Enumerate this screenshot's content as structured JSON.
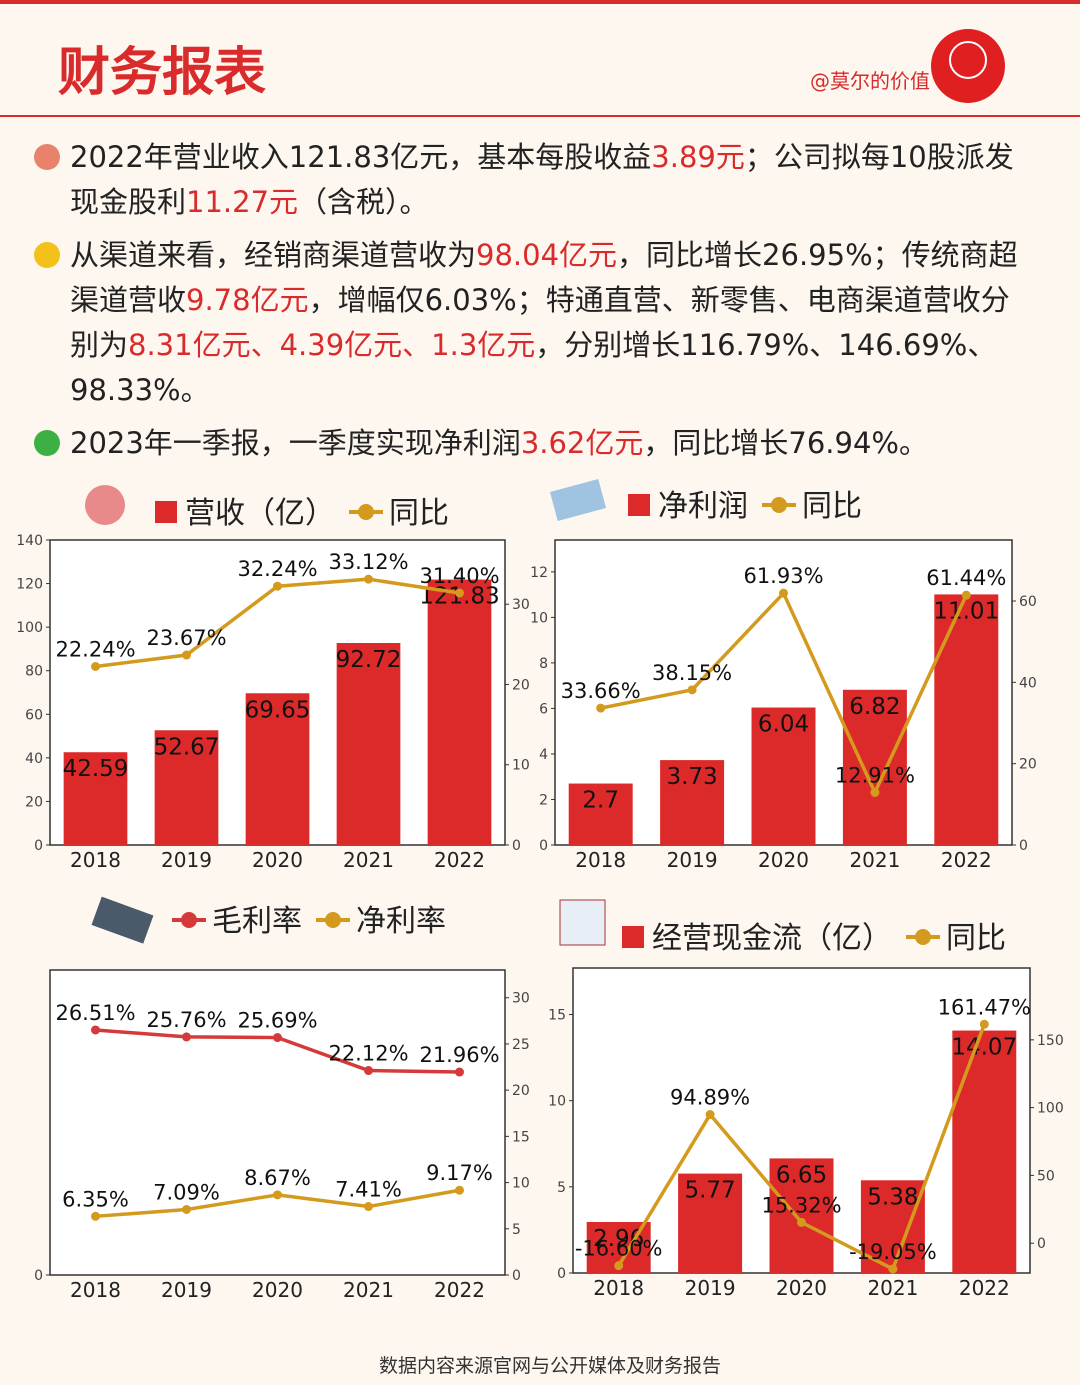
{
  "header": {
    "title": "财务报表",
    "author": "@莫尔的价值"
  },
  "paragraphs": [
    {
      "segments": [
        {
          "text": "2022年营业收入121.83亿元，基本每股收益",
          "highlight": false
        },
        {
          "text": "3.89元",
          "highlight": true
        },
        {
          "text": "；公司拟每10股派发现金股利",
          "highlight": false
        },
        {
          "text": "11.27元",
          "highlight": true
        },
        {
          "text": "（含税）。",
          "highlight": false
        }
      ]
    },
    {
      "segments": [
        {
          "text": "从渠道来看，经销商渠道营收为",
          "highlight": false
        },
        {
          "text": "98.04亿元",
          "highlight": true
        },
        {
          "text": "，同比增长26.95%；传统商超渠道营收",
          "highlight": false
        },
        {
          "text": "9.78亿元",
          "highlight": true
        },
        {
          "text": "，增幅仅6.03%；特通直营、新零售、电商渠道营收分别为",
          "highlight": false
        },
        {
          "text": "8.31亿元、4.39亿元、1.3亿元",
          "highlight": true
        },
        {
          "text": "，分别增长116.79%、146.69%、98.33%。",
          "highlight": false
        }
      ]
    },
    {
      "segments": [
        {
          "text": "2023年一季报，一季度实现净利润",
          "highlight": false
        },
        {
          "text": "3.62亿元",
          "highlight": true
        },
        {
          "text": "，同比增长76.94%。",
          "highlight": false
        }
      ]
    }
  ],
  "chart_data": [
    {
      "type": "combo",
      "categories": [
        "2018",
        "2019",
        "2020",
        "2021",
        "2022"
      ],
      "ylim": [
        0,
        140
      ],
      "yticks": [
        0,
        20,
        40,
        60,
        80,
        100,
        120,
        140
      ],
      "y2lim": [
        0,
        38
      ],
      "y2ticks": [
        0,
        10,
        20,
        30
      ],
      "series": [
        {
          "name": "营收（亿）",
          "type": "bar",
          "color": "#dc2a2a",
          "values": [
            42.59,
            52.67,
            69.65,
            92.72,
            121.83
          ]
        },
        {
          "name": "同比",
          "type": "line",
          "axis": "y2",
          "color": "#d49a1e",
          "values": [
            22.24,
            23.67,
            32.24,
            33.12,
            31.4
          ],
          "value_labels": [
            "22.24%",
            "23.67%",
            "32.24%",
            "33.12%",
            "31.40%"
          ]
        }
      ]
    },
    {
      "type": "combo",
      "categories": [
        "2018",
        "2019",
        "2020",
        "2021",
        "2022"
      ],
      "ylim": [
        0,
        13.4
      ],
      "yticks": [
        0,
        2,
        4,
        6,
        8,
        10,
        12
      ],
      "y2lim": [
        0,
        75
      ],
      "y2ticks": [
        0,
        20,
        40,
        60
      ],
      "series": [
        {
          "name": "净利润",
          "type": "bar",
          "color": "#dc2a2a",
          "values": [
            2.7,
            3.73,
            6.04,
            6.82,
            11.01
          ]
        },
        {
          "name": "同比",
          "type": "line",
          "axis": "y2",
          "color": "#d49a1e",
          "values": [
            33.66,
            38.15,
            61.93,
            12.91,
            61.44
          ],
          "value_labels": [
            "33.66%",
            "38.15%",
            "61.93%",
            "12.91%",
            "61.44%"
          ]
        }
      ]
    },
    {
      "type": "line",
      "categories": [
        "2018",
        "2019",
        "2020",
        "2021",
        "2022"
      ],
      "ylim": [
        0,
        33
      ],
      "yticks": [
        0
      ],
      "y2lim": [
        0,
        33
      ],
      "y2ticks": [
        0,
        5,
        10,
        15,
        20,
        25,
        30
      ],
      "series": [
        {
          "name": "毛利率",
          "type": "line",
          "axis": "y2",
          "color": "#d43a3a",
          "values": [
            26.51,
            25.76,
            25.69,
            22.12,
            21.96
          ],
          "value_labels": [
            "26.51%",
            "25.76%",
            "25.69%",
            "22.12%",
            "21.96%"
          ]
        },
        {
          "name": "净利率",
          "type": "line",
          "axis": "y2",
          "color": "#d49a1e",
          "values": [
            6.35,
            7.09,
            8.67,
            7.41,
            9.17
          ],
          "value_labels": [
            "6.35%",
            "7.09%",
            "8.67%",
            "7.41%",
            "9.17%"
          ]
        }
      ]
    },
    {
      "type": "combo",
      "categories": [
        "2018",
        "2019",
        "2020",
        "2021",
        "2022"
      ],
      "ylim": [
        0,
        17.7
      ],
      "yticks": [
        0,
        5,
        10,
        15
      ],
      "y2lim": [
        -22,
        203
      ],
      "y2ticks": [
        0,
        50,
        100,
        150
      ],
      "series": [
        {
          "name": "经营现金流（亿）",
          "type": "bar",
          "color": "#dc2a2a",
          "values": [
            2.96,
            5.77,
            6.65,
            5.38,
            14.07
          ]
        },
        {
          "name": "同比",
          "type": "line",
          "axis": "y2",
          "color": "#d49a1e",
          "values": [
            -16.6,
            94.89,
            15.32,
            -19.05,
            161.47
          ],
          "value_labels": [
            "-16.60%",
            "94.89%",
            "15.32%",
            "-19.05%",
            "161.47%"
          ]
        }
      ]
    }
  ],
  "footer": "数据内容来源官网与公开媒体及财务报告"
}
